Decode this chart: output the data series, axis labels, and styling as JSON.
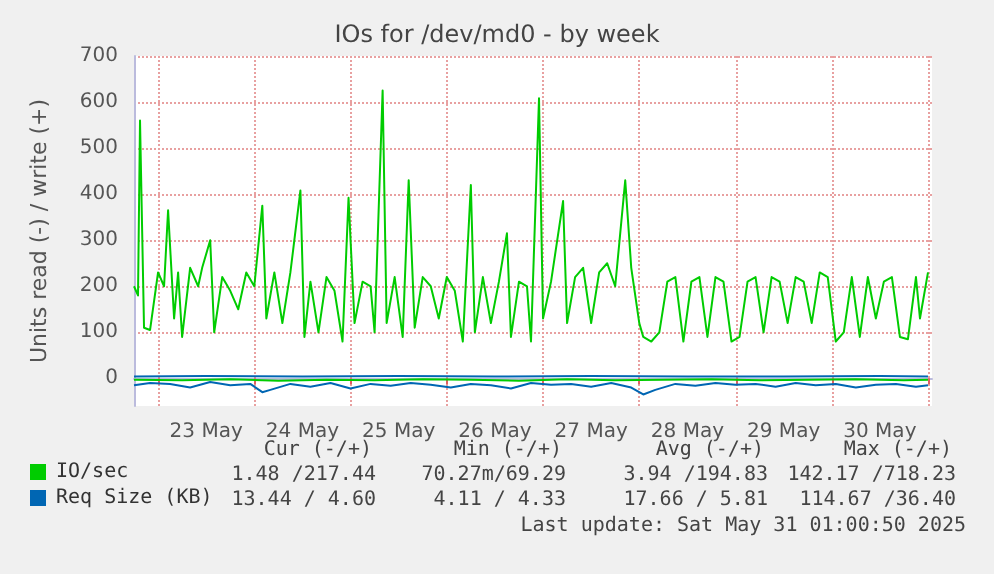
{
  "chart_data": {
    "type": "line",
    "title": "IOs for /dev/md0 - by week",
    "ylabel": "Units read (-) / write (+)",
    "xlim": [
      "2025-05-22T18:00",
      "2025-05-31T01:00"
    ],
    "xticks": [
      {
        "value": "2025-05-23T00:00",
        "label": null
      },
      {
        "value": "2025-05-23T12:00",
        "label": "23 May"
      },
      {
        "value": "2025-05-24T00:00",
        "label": null
      },
      {
        "value": "2025-05-24T12:00",
        "label": "24 May"
      },
      {
        "value": "2025-05-25T00:00",
        "label": null
      },
      {
        "value": "2025-05-25T12:00",
        "label": "25 May"
      },
      {
        "value": "2025-05-26T00:00",
        "label": null
      },
      {
        "value": "2025-05-26T12:00",
        "label": "26 May"
      },
      {
        "value": "2025-05-27T00:00",
        "label": null
      },
      {
        "value": "2025-05-27T12:00",
        "label": "27 May"
      },
      {
        "value": "2025-05-28T00:00",
        "label": null
      },
      {
        "value": "2025-05-28T12:00",
        "label": "28 May"
      },
      {
        "value": "2025-05-29T00:00",
        "label": null
      },
      {
        "value": "2025-05-29T12:00",
        "label": "29 May"
      },
      {
        "value": "2025-05-30T00:00",
        "label": null
      },
      {
        "value": "2025-05-30T12:00",
        "label": "30 May"
      },
      {
        "value": "2025-05-31T00:00",
        "label": null
      }
    ],
    "ylim": [
      -60,
      700
    ],
    "yticks": [
      0,
      100,
      200,
      300,
      400,
      500,
      600,
      700
    ],
    "grid": true,
    "legend": "bottom left",
    "marker": "none",
    "line_style": "solid",
    "series": [
      {
        "name": "IO/sec",
        "color": "#00cc00",
        "x": [
          "2025-05-22T18:00",
          "2025-05-22T19:00",
          "2025-05-22T19:30",
          "2025-05-22T20:30",
          "2025-05-22T22:00",
          "2025-05-23T00:00",
          "2025-05-23T01:30",
          "2025-05-23T02:30",
          "2025-05-23T04:00",
          "2025-05-23T05:00",
          "2025-05-23T06:00",
          "2025-05-23T08:00",
          "2025-05-23T10:00",
          "2025-05-23T11:00",
          "2025-05-23T13:00",
          "2025-05-23T14:00",
          "2025-05-23T16:00",
          "2025-05-23T18:00",
          "2025-05-23T20:00",
          "2025-05-23T22:00",
          "2025-05-24T00:00",
          "2025-05-24T02:00",
          "2025-05-24T03:00",
          "2025-05-24T05:00",
          "2025-05-24T07:00",
          "2025-05-24T09:00",
          "2025-05-24T11:30",
          "2025-05-24T12:30",
          "2025-05-24T14:00",
          "2025-05-24T16:00",
          "2025-05-24T18:00",
          "2025-05-24T20:00",
          "2025-05-24T22:00",
          "2025-05-24T23:30",
          "2025-05-25T01:00",
          "2025-05-25T03:00",
          "2025-05-25T05:00",
          "2025-05-25T06:00",
          "2025-05-25T08:00",
          "2025-05-25T09:00",
          "2025-05-25T11:00",
          "2025-05-25T13:00",
          "2025-05-25T14:30",
          "2025-05-25T16:00",
          "2025-05-25T18:00",
          "2025-05-25T20:00",
          "2025-05-25T22:00",
          "2025-05-26T00:00",
          "2025-05-26T02:00",
          "2025-05-26T04:00",
          "2025-05-26T06:00",
          "2025-05-26T07:00",
          "2025-05-26T09:00",
          "2025-05-26T11:00",
          "2025-05-26T13:00",
          "2025-05-26T15:00",
          "2025-05-26T16:00",
          "2025-05-26T18:00",
          "2025-05-26T20:00",
          "2025-05-26T21:00",
          "2025-05-26T23:00",
          "2025-05-27T00:00",
          "2025-05-27T02:00",
          "2025-05-27T05:00",
          "2025-05-27T06:00",
          "2025-05-27T08:00",
          "2025-05-27T10:00",
          "2025-05-27T12:00",
          "2025-05-27T14:00",
          "2025-05-27T16:00",
          "2025-05-27T18:00",
          "2025-05-27T20:30",
          "2025-05-27T22:00",
          "2025-05-28T00:00",
          "2025-05-28T01:00",
          "2025-05-28T03:00",
          "2025-05-28T05:00",
          "2025-05-28T07:00",
          "2025-05-28T09:00",
          "2025-05-28T11:00",
          "2025-05-28T13:00",
          "2025-05-28T15:00",
          "2025-05-28T17:00",
          "2025-05-28T19:00",
          "2025-05-28T21:00",
          "2025-05-28T23:00",
          "2025-05-29T01:00",
          "2025-05-29T03:00",
          "2025-05-29T05:00",
          "2025-05-29T07:00",
          "2025-05-29T09:00",
          "2025-05-29T11:00",
          "2025-05-29T13:00",
          "2025-05-29T15:00",
          "2025-05-29T17:00",
          "2025-05-29T19:00",
          "2025-05-29T21:00",
          "2025-05-29T23:00",
          "2025-05-30T01:00",
          "2025-05-30T03:00",
          "2025-05-30T05:00",
          "2025-05-30T07:00",
          "2025-05-30T09:00",
          "2025-05-30T11:00",
          "2025-05-30T13:00",
          "2025-05-30T15:00",
          "2025-05-30T17:00",
          "2025-05-30T19:00",
          "2025-05-30T21:00",
          "2025-05-30T22:00",
          "2025-05-31T00:00"
        ],
        "values": [
          200,
          180,
          560,
          110,
          105,
          230,
          200,
          365,
          130,
          230,
          90,
          240,
          200,
          240,
          300,
          100,
          220,
          190,
          150,
          230,
          200,
          375,
          130,
          230,
          120,
          230,
          408,
          90,
          210,
          100,
          220,
          190,
          80,
          392,
          120,
          210,
          200,
          100,
          625,
          120,
          220,
          90,
          430,
          110,
          220,
          200,
          130,
          220,
          190,
          80,
          420,
          100,
          220,
          120,
          210,
          315,
          90,
          210,
          200,
          80,
          608,
          130,
          210,
          385,
          120,
          220,
          240,
          120,
          230,
          250,
          200,
          430,
          240,
          120,
          90,
          80,
          100,
          210,
          220,
          80,
          210,
          220,
          90,
          220,
          210,
          80,
          90,
          210,
          220,
          100,
          220,
          210,
          120,
          220,
          210,
          120,
          230,
          220,
          80,
          100,
          220,
          90,
          220,
          130,
          210,
          220,
          90,
          85,
          220,
          130,
          230
        ]
      },
      {
        "color": "#00cc00",
        "x": [
          "2025-05-22T18:00",
          "2025-05-23T06:00",
          "2025-05-23T18:00",
          "2025-05-24T06:00",
          "2025-05-24T18:00",
          "2025-05-25T06:00",
          "2025-05-25T18:00",
          "2025-05-26T06:00",
          "2025-05-26T18:00",
          "2025-05-27T06:00",
          "2025-05-27T18:00",
          "2025-05-28T06:00",
          "2025-05-28T18:00",
          "2025-05-29T06:00",
          "2025-05-29T18:00",
          "2025-05-30T06:00",
          "2025-05-30T18:00",
          "2025-05-31T00:00"
        ],
        "values": [
          -3,
          -4,
          -2,
          -5,
          -3,
          -4,
          -2,
          -3,
          -5,
          -2,
          -4,
          -3,
          -2,
          -4,
          -3,
          -2,
          -4,
          -3
        ]
      },
      {
        "color": "#0066b3",
        "x": [
          "2025-05-22T18:00",
          "2025-05-23T12:00",
          "2025-05-24T12:00",
          "2025-05-25T12:00",
          "2025-05-26T12:00",
          "2025-05-27T12:00",
          "2025-05-28T12:00",
          "2025-05-29T12:00",
          "2025-05-30T12:00",
          "2025-05-31T00:00"
        ],
        "values": [
          4,
          5,
          4,
          5,
          4,
          5,
          4,
          4,
          5,
          4
        ]
      },
      {
        "name": "Req Size (KB)",
        "color": "#0066b3",
        "x": [
          "2025-05-22T18:00",
          "2025-05-22T22:00",
          "2025-05-23T03:00",
          "2025-05-23T08:00",
          "2025-05-23T13:00",
          "2025-05-23T18:00",
          "2025-05-23T23:00",
          "2025-05-24T02:00",
          "2025-05-24T04:00",
          "2025-05-24T09:00",
          "2025-05-24T14:00",
          "2025-05-24T19:00",
          "2025-05-25T00:00",
          "2025-05-25T05:00",
          "2025-05-25T10:00",
          "2025-05-25T15:00",
          "2025-05-25T20:00",
          "2025-05-26T01:00",
          "2025-05-26T06:00",
          "2025-05-26T11:00",
          "2025-05-26T16:00",
          "2025-05-26T21:00",
          "2025-05-27T02:00",
          "2025-05-27T07:00",
          "2025-05-27T12:00",
          "2025-05-27T17:00",
          "2025-05-27T22:00",
          "2025-05-28T01:00",
          "2025-05-28T04:00",
          "2025-05-28T09:00",
          "2025-05-28T14:00",
          "2025-05-28T19:00",
          "2025-05-29T00:00",
          "2025-05-29T05:00",
          "2025-05-29T10:00",
          "2025-05-29T15:00",
          "2025-05-29T20:00",
          "2025-05-30T01:00",
          "2025-05-30T06:00",
          "2025-05-30T11:00",
          "2025-05-30T16:00",
          "2025-05-30T21:00",
          "2025-05-31T00:00"
        ],
        "values": [
          -15,
          -10,
          -12,
          -20,
          -8,
          -15,
          -12,
          -30,
          -25,
          -12,
          -18,
          -10,
          -22,
          -12,
          -16,
          -10,
          -14,
          -20,
          -12,
          -15,
          -22,
          -10,
          -14,
          -12,
          -18,
          -10,
          -20,
          -35,
          -25,
          -12,
          -16,
          -10,
          -14,
          -12,
          -18,
          -10,
          -15,
          -12,
          -20,
          -14,
          -12,
          -18,
          -15
        ]
      }
    ],
    "annotations": [
      "Cur (-/+)",
      "Min (-/+)",
      "Avg (-/+)",
      "Max (-/+)",
      "1.48 /217.44",
      "70.27m/69.29",
      "3.94 /194.83",
      "142.17 /718.23",
      "13.44 / 4.60",
      "4.11 / 4.33",
      "17.66 / 5.81",
      "114.67 /36.40",
      "Last update: Sat May 31 01:00:50 2025"
    ]
  }
}
